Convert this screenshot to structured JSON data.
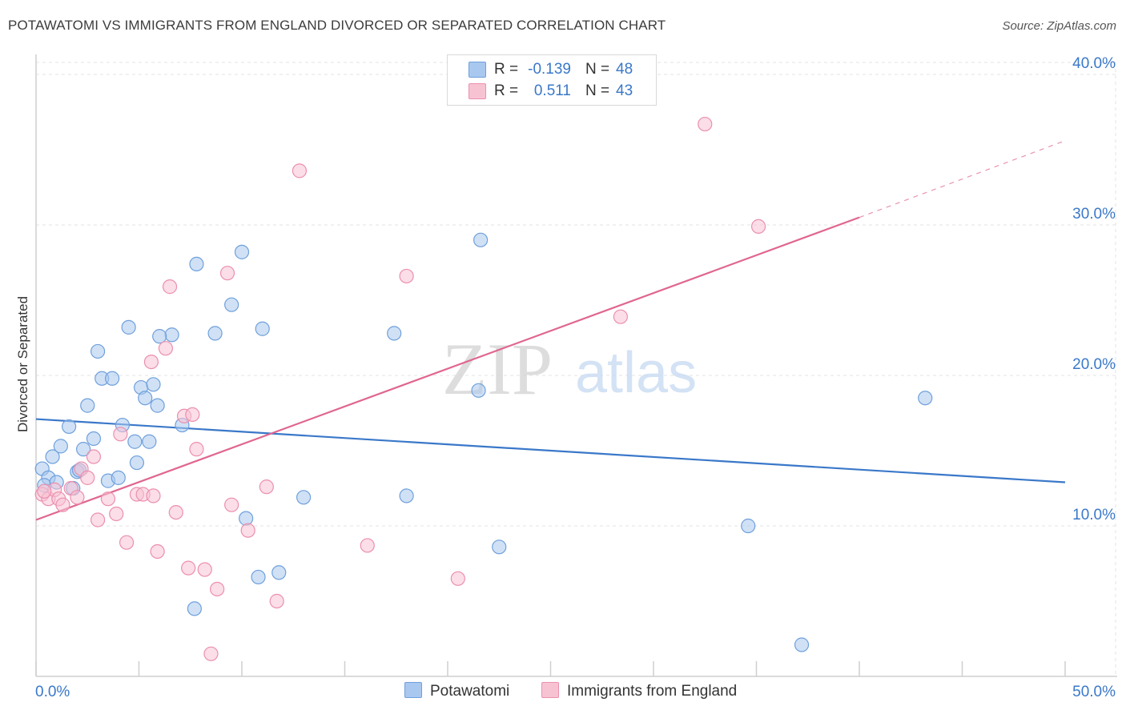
{
  "title": "POTAWATOMI VS IMMIGRANTS FROM ENGLAND DIVORCED OR SEPARATED CORRELATION CHART",
  "source": "Source: ZipAtlas.com",
  "watermark": {
    "zip": "ZIP",
    "atlas": "atlas"
  },
  "legend": {
    "r_label": "R =",
    "n_label": "N =",
    "rows": [
      {
        "r": "-0.139",
        "n": "48",
        "color": "#a9c8ef",
        "border": "#6fa0dc"
      },
      {
        "r": "0.511",
        "n": "43",
        "color": "#f7c3d3",
        "border": "#ec8fae"
      }
    ]
  },
  "chart_data": {
    "type": "scatter",
    "title": "POTAWATOMI VS IMMIGRANTS FROM ENGLAND DIVORCED OR SEPARATED CORRELATION CHART",
    "xlabel": "",
    "ylabel": "Divorced or Separated",
    "xlim": [
      0,
      50
    ],
    "ylim": [
      0,
      40.8
    ],
    "x_tick_labels": [
      "0.0%",
      "50.0%"
    ],
    "y_ticks": [
      10,
      20,
      30,
      40
    ],
    "y_tick_labels": [
      "10.0%",
      "20.0%",
      "30.0%",
      "40.0%"
    ],
    "grid": true,
    "legend_position": "top-center",
    "series": [
      {
        "name": "Potawatomi",
        "color": "#a9c8ef",
        "edge": "#6fa0dc",
        "line_color": "#3a78c9",
        "trend": {
          "x": [
            0,
            50
          ],
          "y": [
            17.1,
            12.9
          ]
        },
        "points": [
          [
            0.3,
            13.8
          ],
          [
            0.6,
            13.2
          ],
          [
            0.8,
            14.6
          ],
          [
            1.2,
            15.3
          ],
          [
            1.6,
            16.6
          ],
          [
            1.8,
            12.5
          ],
          [
            2.0,
            13.6
          ],
          [
            2.3,
            15.1
          ],
          [
            2.5,
            18.0
          ],
          [
            2.8,
            15.8
          ],
          [
            3.0,
            21.6
          ],
          [
            3.2,
            19.8
          ],
          [
            3.5,
            13.0
          ],
          [
            3.7,
            19.8
          ],
          [
            4.0,
            13.2
          ],
          [
            4.2,
            16.7
          ],
          [
            4.5,
            23.2
          ],
          [
            4.8,
            15.6
          ],
          [
            4.9,
            14.2
          ],
          [
            5.1,
            19.2
          ],
          [
            5.3,
            18.5
          ],
          [
            5.5,
            15.6
          ],
          [
            5.7,
            19.4
          ],
          [
            5.9,
            18.0
          ],
          [
            6.6,
            22.7
          ],
          [
            7.1,
            16.7
          ],
          [
            7.8,
            27.4
          ],
          [
            8.7,
            22.8
          ],
          [
            9.5,
            24.7
          ],
          [
            10.0,
            28.2
          ],
          [
            10.2,
            10.5
          ],
          [
            10.8,
            6.6
          ],
          [
            11.0,
            23.1
          ],
          [
            11.8,
            6.9
          ],
          [
            13.0,
            11.9
          ],
          [
            17.4,
            22.8
          ],
          [
            18.0,
            12.0
          ],
          [
            21.5,
            19.0
          ],
          [
            21.6,
            29.0
          ],
          [
            22.5,
            8.6
          ],
          [
            34.6,
            10.0
          ],
          [
            37.2,
            2.1
          ],
          [
            43.2,
            18.5
          ],
          [
            7.7,
            4.5
          ],
          [
            0.4,
            12.7
          ],
          [
            1.0,
            12.9
          ],
          [
            6.0,
            22.6
          ],
          [
            2.1,
            13.7
          ]
        ]
      },
      {
        "name": "Immigrants from England",
        "color": "#f7c3d3",
        "edge": "#ec8fae",
        "line_color": "#e0668f",
        "trend": {
          "x": [
            0,
            40
          ],
          "y": [
            10.4,
            30.5
          ]
        },
        "trend_dashed": {
          "x": [
            40,
            50
          ],
          "y": [
            30.5,
            35.6
          ]
        },
        "points": [
          [
            0.3,
            12.1
          ],
          [
            0.6,
            11.8
          ],
          [
            0.9,
            12.4
          ],
          [
            1.1,
            11.8
          ],
          [
            1.3,
            11.4
          ],
          [
            1.7,
            12.5
          ],
          [
            2.0,
            11.9
          ],
          [
            2.2,
            13.8
          ],
          [
            2.5,
            13.2
          ],
          [
            2.8,
            14.6
          ],
          [
            3.0,
            10.4
          ],
          [
            3.5,
            11.8
          ],
          [
            3.9,
            10.8
          ],
          [
            4.1,
            16.1
          ],
          [
            4.4,
            8.9
          ],
          [
            4.9,
            12.1
          ],
          [
            5.2,
            12.1
          ],
          [
            5.6,
            20.9
          ],
          [
            5.7,
            12.0
          ],
          [
            5.9,
            8.3
          ],
          [
            6.3,
            21.8
          ],
          [
            6.5,
            25.9
          ],
          [
            6.8,
            10.9
          ],
          [
            7.2,
            17.3
          ],
          [
            7.4,
            7.2
          ],
          [
            7.6,
            17.4
          ],
          [
            7.8,
            15.1
          ],
          [
            8.2,
            7.1
          ],
          [
            8.5,
            1.5
          ],
          [
            8.8,
            5.8
          ],
          [
            9.3,
            26.8
          ],
          [
            9.5,
            11.4
          ],
          [
            10.3,
            9.7
          ],
          [
            11.2,
            12.6
          ],
          [
            11.7,
            5.0
          ],
          [
            12.8,
            33.6
          ],
          [
            16.1,
            8.7
          ],
          [
            18.0,
            26.6
          ],
          [
            20.5,
            6.5
          ],
          [
            28.4,
            23.9
          ],
          [
            32.5,
            36.7
          ],
          [
            35.1,
            29.9
          ],
          [
            0.4,
            12.3
          ]
        ]
      }
    ]
  }
}
